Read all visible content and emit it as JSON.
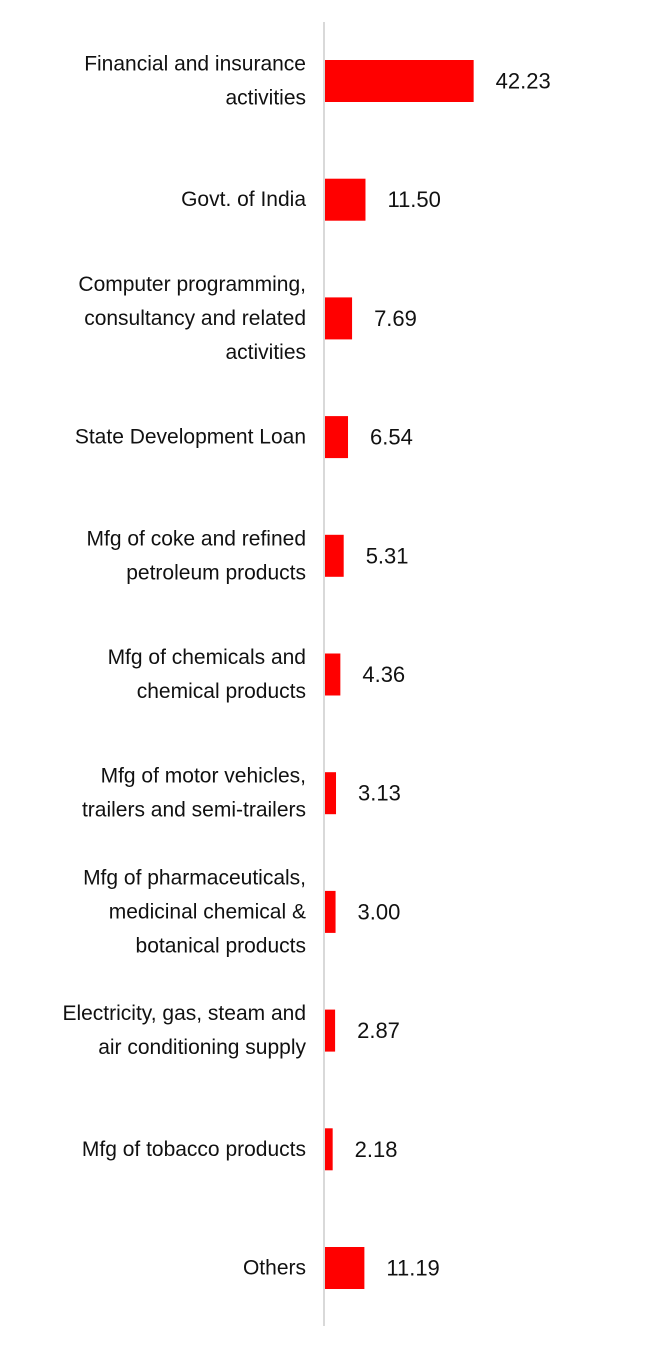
{
  "chart_data": {
    "type": "bar",
    "orientation": "horizontal",
    "categories": [
      [
        "Financial and insurance",
        "activities"
      ],
      [
        "Govt. of India"
      ],
      [
        "Computer programming,",
        "consultancy and related",
        "activities"
      ],
      [
        "State Development Loan"
      ],
      [
        "Mfg of coke and refined",
        "petroleum products"
      ],
      [
        "Mfg of chemicals and",
        "chemical products"
      ],
      [
        "Mfg of motor vehicles,",
        "trailers and semi-trailers"
      ],
      [
        "Mfg of pharmaceuticals,",
        "medicinal chemical &",
        "botanical products"
      ],
      [
        "Electricity, gas, steam and",
        "air conditioning supply"
      ],
      [
        "Mfg of tobacco products"
      ],
      [
        "Others"
      ]
    ],
    "values": [
      42.23,
      11.5,
      7.69,
      6.54,
      5.31,
      4.36,
      3.13,
      3.0,
      2.87,
      2.18,
      11.19
    ],
    "value_labels": [
      "42.23",
      "11.50",
      "7.69",
      "6.54",
      "5.31",
      "4.36",
      "3.13",
      "3.00",
      "2.87",
      "2.18",
      "11.19"
    ],
    "bar_color": "#ff0000",
    "axis_color": "#d9d9d9",
    "title": "",
    "xlabel": "",
    "ylabel": "",
    "grid": false,
    "legend": "none"
  }
}
